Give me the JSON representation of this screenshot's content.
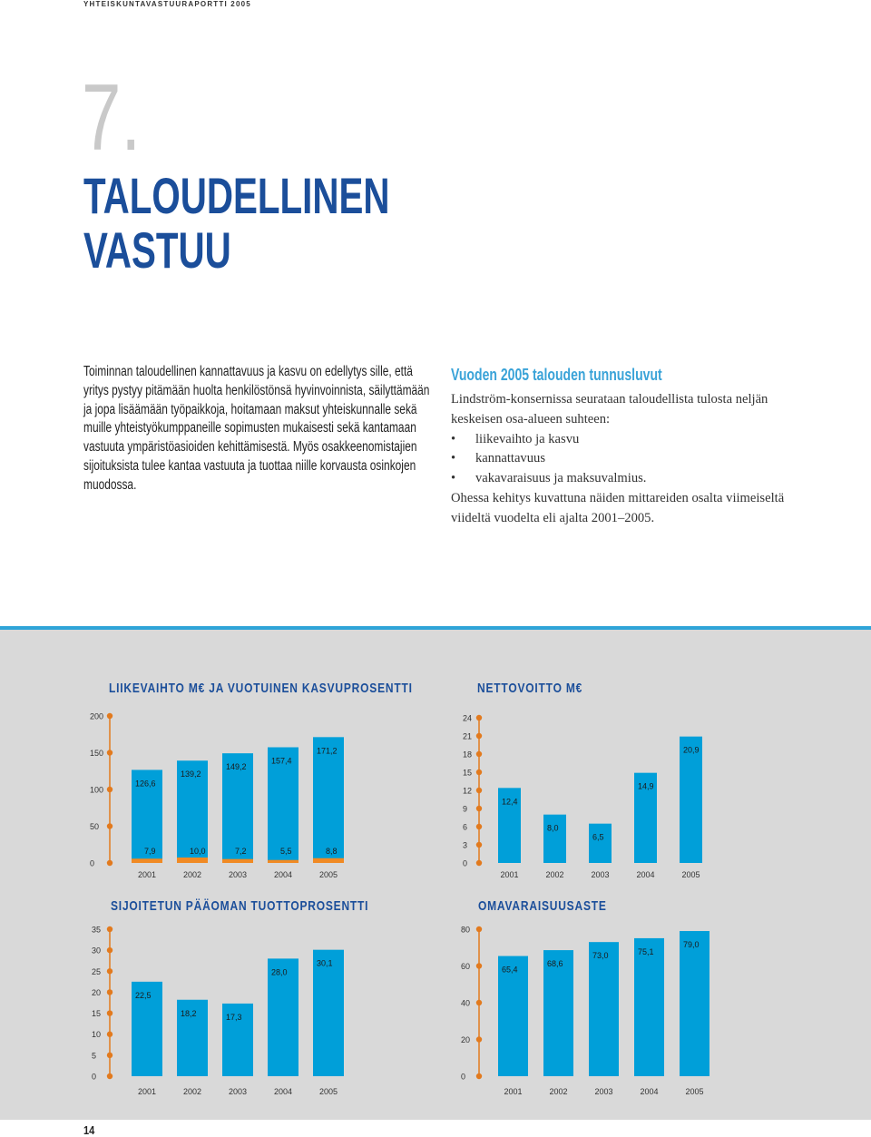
{
  "header": "YHTEISKUNTAVASTUURAPORTTI 2005",
  "chapter": {
    "number": "7.",
    "title_lines": [
      "TALOUDELLINEN",
      "VASTUU"
    ]
  },
  "intro": "Toiminnan taloudellinen kannattavuus ja kasvu on edellytys sille, että yritys pystyy pitämään huolta henkilöstönsä hyvinvoinnista, säilyttämään ja jopa lisäämään työpaikkoja, hoitamaan maksut yhteiskunnalle sekä muille yhteistyökumppaneille sopimusten mukaisesti sekä kantamaan vastuuta ympäristöasioiden kehittämisestä. Myös osakkeenomistajien sijoituksista tulee kantaa vastuuta ja tuottaa niille korvausta osinkojen muodossa.",
  "keyfigures": {
    "title": "Vuoden 2005 talouden tunnusluvut",
    "lead": "Lindström-konsernissa seurataan taloudellista tulosta neljän keskeisen osa-alueen suhteen:",
    "items": [
      "liikevaihto ja kasvu",
      "kannattavuus",
      "vakavaraisuus ja maksuvalmius."
    ],
    "tail": "Ohessa kehitys kuvattuna näiden mittareiden osalta viimeiseltä viideltä vuodelta eli ajalta 2001–2005."
  },
  "page_number": "14",
  "colors": {
    "bar": "#009fd9",
    "accent_bar": "#f08a24",
    "title": "#1b4e9a",
    "highlight": "#3aa3d8",
    "panel": "#d9d9d9"
  },
  "chart_data": [
    {
      "type": "bar",
      "title": "LIIKEVAIHTO M€ JA VUOTUINEN KASVUPROSENTTI",
      "categories": [
        "2001",
        "2002",
        "2003",
        "2004",
        "2005"
      ],
      "series": [
        {
          "values": [
            126.6,
            139.2,
            149.2,
            157.4,
            171.2
          ],
          "labels": [
            "126,6",
            "139,2",
            "149,2",
            "157,4",
            "171,2"
          ],
          "color": "#009fd9"
        },
        {
          "values": [
            7.9,
            10.0,
            7.2,
            5.5,
            8.8
          ],
          "labels": [
            "7,9",
            "10,0",
            "7,2",
            "5,5",
            "8,8"
          ],
          "color": "#f08a24"
        }
      ],
      "yticks": [
        0,
        50,
        100,
        150,
        200
      ],
      "ylim": [
        0,
        200
      ]
    },
    {
      "type": "bar",
      "title": "NETTOVOITTO M€",
      "categories": [
        "2001",
        "2002",
        "2003",
        "2004",
        "2005"
      ],
      "values": [
        12.4,
        8.0,
        6.5,
        14.9,
        20.9
      ],
      "labels": [
        "12,4",
        "8,0",
        "6,5",
        "14,9",
        "20,9"
      ],
      "yticks": [
        0,
        3,
        6,
        9,
        12,
        15,
        18,
        21,
        24
      ],
      "ylim": [
        0,
        24
      ]
    },
    {
      "type": "bar",
      "title": "SIJOITETUN PÄÄOMAN TUOTTOPROSENTTI",
      "categories": [
        "2001",
        "2002",
        "2003",
        "2004",
        "2005"
      ],
      "values": [
        22.5,
        18.2,
        17.3,
        28.0,
        30.1
      ],
      "labels": [
        "22,5",
        "18,2",
        "17,3",
        "28,0",
        "30,1"
      ],
      "yticks": [
        0,
        5,
        10,
        15,
        20,
        25,
        30,
        35
      ],
      "ylim": [
        0,
        35
      ]
    },
    {
      "type": "bar",
      "title": "OMAVARAISUUSASTE",
      "categories": [
        "2001",
        "2002",
        "2003",
        "2004",
        "2005"
      ],
      "values": [
        65.4,
        68.6,
        73.0,
        75.1,
        79.0
      ],
      "labels": [
        "65,4",
        "68,6",
        "73,0",
        "75,1",
        "79,0"
      ],
      "yticks": [
        0,
        20,
        40,
        60,
        80
      ],
      "ylim": [
        0,
        80
      ]
    }
  ]
}
